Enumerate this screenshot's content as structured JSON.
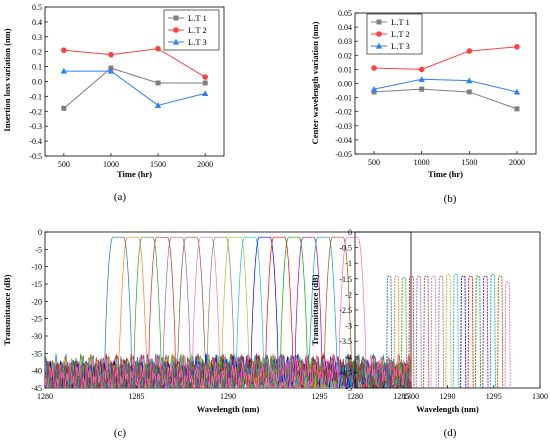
{
  "chart_data": [
    {
      "type": "line",
      "caption": "(a)",
      "ylabel": "Insertion loss variation (nm)",
      "xlabel": "Time (hr)",
      "x": [
        500,
        1000,
        1500,
        2000
      ],
      "xlim": [
        300,
        2200
      ],
      "ylim": [
        -0.5,
        0.5
      ],
      "yticks": [
        "0.5",
        "0.4",
        "0.3",
        "0.2",
        "0.1",
        "0.0",
        "-0.1",
        "-0.2",
        "-0.3",
        "-0.4",
        "-0.5"
      ],
      "xticks": [
        "500",
        "1000",
        "1500",
        "2000"
      ],
      "legend_position": "top-right",
      "series": [
        {
          "name": "L.T 1",
          "color": "#7f7f7f",
          "marker": "square",
          "values": [
            -0.18,
            0.09,
            -0.01,
            -0.01
          ]
        },
        {
          "name": "L.T 2",
          "color": "#ff4040",
          "marker": "circle",
          "values": [
            0.21,
            0.18,
            0.22,
            0.03
          ]
        },
        {
          "name": "L.T 3",
          "color": "#2f7fff",
          "marker": "triangle",
          "values": [
            0.07,
            0.07,
            -0.16,
            -0.08
          ]
        }
      ]
    },
    {
      "type": "line",
      "caption": "(b)",
      "ylabel": "Center wavelength variation (nm)",
      "xlabel": "Time (hr)",
      "x": [
        500,
        1000,
        1500,
        2000
      ],
      "xlim": [
        300,
        2200
      ],
      "ylim": [
        -0.05,
        0.05
      ],
      "yticks": [
        "0.05",
        "0.04",
        "0.03",
        "0.02",
        "0.01",
        "0.00",
        "-0.01",
        "-0.02",
        "-0.03",
        "-0.04",
        "-0.05"
      ],
      "xticks": [
        "500",
        "1000",
        "1500",
        "2000"
      ],
      "legend_position": "top-left",
      "series": [
        {
          "name": "L.T 1",
          "color": "#7f7f7f",
          "marker": "square",
          "values": [
            -0.006,
            -0.004,
            -0.006,
            -0.018
          ]
        },
        {
          "name": "L.T 2",
          "color": "#ff4040",
          "marker": "circle",
          "values": [
            0.011,
            0.01,
            0.023,
            0.026
          ]
        },
        {
          "name": "L.T 3",
          "color": "#2f7fff",
          "marker": "triangle",
          "values": [
            -0.004,
            0.003,
            0.002,
            -0.006
          ]
        }
      ]
    },
    {
      "type": "line",
      "caption": "(c)",
      "ylabel": "Transmittance (dB)",
      "xlabel": "Wavelength (nm)",
      "xlim": [
        1280,
        1300
      ],
      "ylim": [
        -45,
        0
      ],
      "xticks": [
        "1280",
        "1285",
        "1290",
        "1295",
        "1300"
      ],
      "yticks": [
        "0",
        "-5",
        "-10",
        "-15",
        "-20",
        "-25",
        "-30",
        "-35",
        "-40",
        "-45"
      ],
      "channel_start_nm": 1284.0,
      "channel_spacing_nm": 0.8,
      "channel_count": 17,
      "peak_db": -1.5,
      "passband_halfwidth_nm": 0.3,
      "sidelobe_floor_db": [
        -45,
        -34
      ],
      "colors": [
        "#1f77b4",
        "#ff7f0e",
        "#2ca02c",
        "#d62728",
        "#9467bd",
        "#8c564b",
        "#e377c2",
        "#7f7f7f",
        "#bcbd22",
        "#17becf",
        "#0000ff",
        "#ff0000",
        "#00aa00",
        "#aa00aa",
        "#00aaaa",
        "#aa5500",
        "#ff66cc"
      ]
    },
    {
      "type": "line",
      "caption": "(d)",
      "ylabel": "Transmittance (dB)",
      "xlabel": "Wavelength (nm)",
      "xlim": [
        1280,
        1300
      ],
      "ylim": [
        -5,
        0
      ],
      "xticks": [
        "1280",
        "1285",
        "1290",
        "1295",
        "1300"
      ],
      "yticks": [
        "0",
        "-0.5",
        "-1",
        "-1.5",
        "-2",
        "-2.5",
        "-3",
        "-3.5",
        "-4",
        "-4.5",
        "-5"
      ],
      "channel_start_nm": 1283.7,
      "channel_spacing_nm": 0.8,
      "channel_count": 17,
      "peak_db": [
        -1.4,
        -1.4,
        -1.45,
        -1.4,
        -1.4,
        -1.4,
        -1.4,
        -1.4,
        -1.35,
        -1.35,
        -1.4,
        -1.4,
        -1.4,
        -1.4,
        -1.35,
        -1.4,
        -1.6
      ],
      "colors": [
        "#1f77b4",
        "#ff7f0e",
        "#2ca02c",
        "#d62728",
        "#9467bd",
        "#8c564b",
        "#e377c2",
        "#7f7f7f",
        "#bcbd22",
        "#17becf",
        "#0000ff",
        "#ff0000",
        "#00aa00",
        "#aa00aa",
        "#00aaaa",
        "#aa5500",
        "#ff66cc"
      ]
    }
  ]
}
